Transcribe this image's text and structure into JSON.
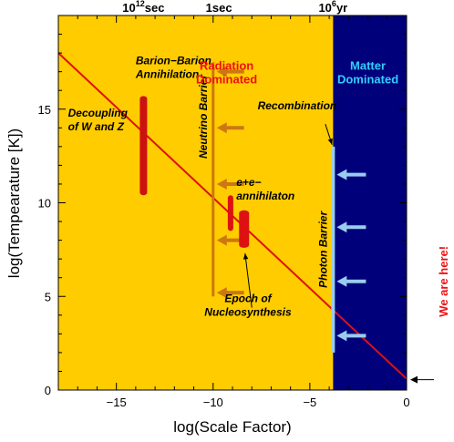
{
  "chart_data": {
    "type": "line",
    "xlabel": "log(Scale Factor)",
    "ylabel": "log(Tempearature [K])",
    "xlim": [
      -18,
      0
    ],
    "ylim": [
      0,
      20
    ],
    "x_ticks": [
      -15,
      -10,
      -5,
      0
    ],
    "y_ticks": [
      0,
      5,
      10,
      15
    ],
    "x_minor_tick_step": 1,
    "y_minor_tick_step": 1,
    "grid": false,
    "top_axis": {
      "labels": [
        {
          "x": -13.6,
          "base": "10",
          "exponent": "12",
          "suffix": "sec"
        },
        {
          "x": -9.7,
          "base": "1sec",
          "exponent": "",
          "suffix": ""
        },
        {
          "x": -3.8,
          "base": "10",
          "exponent": "6",
          "suffix": "yr"
        }
      ]
    },
    "series": [
      {
        "x": [
          -18,
          0
        ],
        "y": [
          18.0,
          0.6
        ],
        "color": "#dd1111"
      }
    ],
    "regions": [
      {
        "label_lines": [
          "Radiation",
          "Dominated"
        ],
        "x_from": -18,
        "x_to": -3.8,
        "fill": "#ffcc00",
        "label_color": "#ee1111"
      },
      {
        "label_lines": [
          "Matter",
          "Dominated"
        ],
        "x_from": -3.8,
        "x_to": 0,
        "fill": "#00007a",
        "label_color": "#33ccff"
      }
    ],
    "event_bars": [
      {
        "x": -13.6,
        "y_from": 10.4,
        "y_to": 15.7,
        "color": "#cc1111",
        "width": "thick"
      },
      {
        "x": -9.1,
        "y_from": 8.5,
        "y_to": 10.4,
        "color": "#dd1111",
        "width": "medium"
      },
      {
        "x": -8.4,
        "y_from": 7.6,
        "y_to": 9.6,
        "color": "#dd1111",
        "width": "wide"
      }
    ],
    "barriers": [
      {
        "label": "Neutrino Barrier",
        "x": -10,
        "y_from": 5.0,
        "y_to": 17.5,
        "color": "#cc7711",
        "arrows_y": [
          17.0,
          14.0,
          11.0,
          8.0,
          5.2
        ],
        "arrow_direction": "left",
        "arrow_length": 1.6
      },
      {
        "label": "Photon Barrier",
        "x": -3.8,
        "y_from": 2.0,
        "y_to": 13.0,
        "color": "#99ccee",
        "arrows_y": [
          11.5,
          8.7,
          5.8,
          2.9
        ],
        "arrow_direction": "left",
        "arrow_length": 1.7
      }
    ],
    "annotations": [
      {
        "lines": [
          "Barion−Barion",
          "Annihilation"
        ],
        "x": -14.0,
        "y": 17.4,
        "anchor": "start"
      },
      {
        "lines": [
          "Decoupling",
          "of W and Z"
        ],
        "x": -17.5,
        "y": 14.6,
        "anchor": "start"
      },
      {
        "lines": [
          "Recombination"
        ],
        "x": -7.7,
        "y": 15.0,
        "anchor": "start"
      },
      {
        "lines": [
          "e+e−",
          "annihilaton"
        ],
        "x": -8.8,
        "y": 10.9,
        "anchor": "start"
      },
      {
        "lines": [
          "Epoch of",
          "Nucleosynthesis"
        ],
        "x": -8.2,
        "y": 4.7,
        "anchor": "middle"
      }
    ],
    "pointers": [
      {
        "from": [
          -4.2,
          14.2
        ],
        "to": [
          -3.85,
          13.1
        ],
        "color": "#000000"
      },
      {
        "from": [
          -8.0,
          4.4
        ],
        "to": [
          -8.35,
          7.3
        ],
        "color": "#000000"
      }
    ],
    "marker": {
      "label": "We are here!",
      "x": 0,
      "y": 0.6,
      "color": "#ee1111"
    }
  }
}
